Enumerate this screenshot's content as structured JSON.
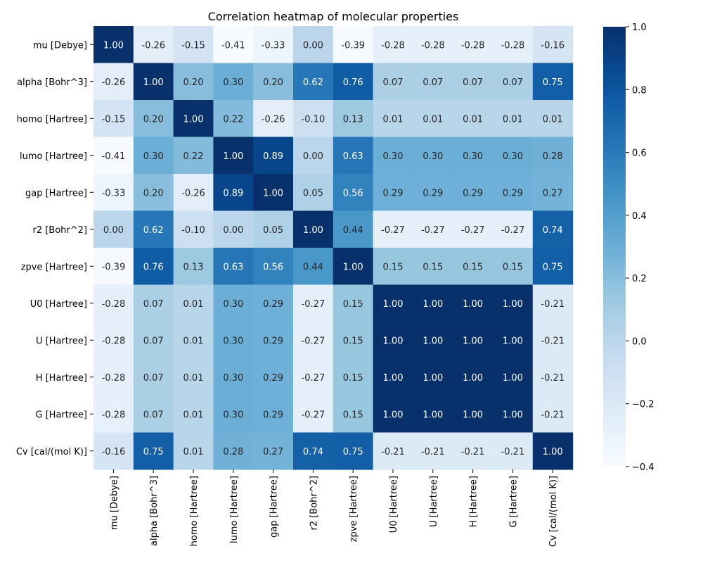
{
  "chart_data": {
    "type": "heatmap",
    "title": "Correlation heatmap of molecular properties",
    "row_labels": [
      "mu [Debye]",
      "alpha [Bohr^3]",
      "homo [Hartree]",
      "lumo [Hartree]",
      "gap [Hartree]",
      "r2 [Bohr^2]",
      "zpve [Hartree]",
      "U0 [Hartree]",
      "U [Hartree]",
      "H [Hartree]",
      "G [Hartree]",
      "Cv [cal/(mol K)]"
    ],
    "col_labels": [
      "mu [Debye]",
      "alpha [Bohr^3]",
      "homo [Hartree]",
      "lumo [Hartree]",
      "gap [Hartree]",
      "r2 [Bohr^2]",
      "zpve [Hartree]",
      "U0 [Hartree]",
      "U [Hartree]",
      "H [Hartree]",
      "G [Hartree]",
      "Cv [cal/(mol K)]"
    ],
    "values": [
      [
        1.0,
        -0.26,
        -0.15,
        -0.41,
        -0.33,
        0.0,
        -0.39,
        -0.28,
        -0.28,
        -0.28,
        -0.28,
        -0.16
      ],
      [
        -0.26,
        1.0,
        0.2,
        0.3,
        0.2,
        0.62,
        0.76,
        0.07,
        0.07,
        0.07,
        0.07,
        0.75
      ],
      [
        -0.15,
        0.2,
        1.0,
        0.22,
        -0.26,
        -0.1,
        0.13,
        0.01,
        0.01,
        0.01,
        0.01,
        0.01
      ],
      [
        -0.41,
        0.3,
        0.22,
        1.0,
        0.89,
        0.0,
        0.63,
        0.3,
        0.3,
        0.3,
        0.3,
        0.28
      ],
      [
        -0.33,
        0.2,
        -0.26,
        0.89,
        1.0,
        0.05,
        0.56,
        0.29,
        0.29,
        0.29,
        0.29,
        0.27
      ],
      [
        0.0,
        0.62,
        -0.1,
        0.0,
        0.05,
        1.0,
        0.44,
        -0.27,
        -0.27,
        -0.27,
        -0.27,
        0.74
      ],
      [
        -0.39,
        0.76,
        0.13,
        0.63,
        0.56,
        0.44,
        1.0,
        0.15,
        0.15,
        0.15,
        0.15,
        0.75
      ],
      [
        -0.28,
        0.07,
        0.01,
        0.3,
        0.29,
        -0.27,
        0.15,
        1.0,
        1.0,
        1.0,
        1.0,
        -0.21
      ],
      [
        -0.28,
        0.07,
        0.01,
        0.3,
        0.29,
        -0.27,
        0.15,
        1.0,
        1.0,
        1.0,
        1.0,
        -0.21
      ],
      [
        -0.28,
        0.07,
        0.01,
        0.3,
        0.29,
        -0.27,
        0.15,
        1.0,
        1.0,
        1.0,
        1.0,
        -0.21
      ],
      [
        -0.28,
        0.07,
        0.01,
        0.3,
        0.29,
        -0.27,
        0.15,
        1.0,
        1.0,
        1.0,
        1.0,
        -0.21
      ],
      [
        -0.16,
        0.75,
        0.01,
        0.28,
        0.27,
        0.74,
        0.75,
        -0.21,
        -0.21,
        -0.21,
        -0.21,
        1.0
      ]
    ],
    "colormap": "Blues",
    "vmin": -0.4,
    "vmax": 1.0,
    "colorbar_ticks": [
      -0.4,
      -0.2,
      0.0,
      0.2,
      0.4,
      0.6,
      0.8,
      1.0
    ],
    "annotate": true,
    "annotation_format": "2 decimals",
    "grid": false,
    "colorbar_position": "right"
  }
}
